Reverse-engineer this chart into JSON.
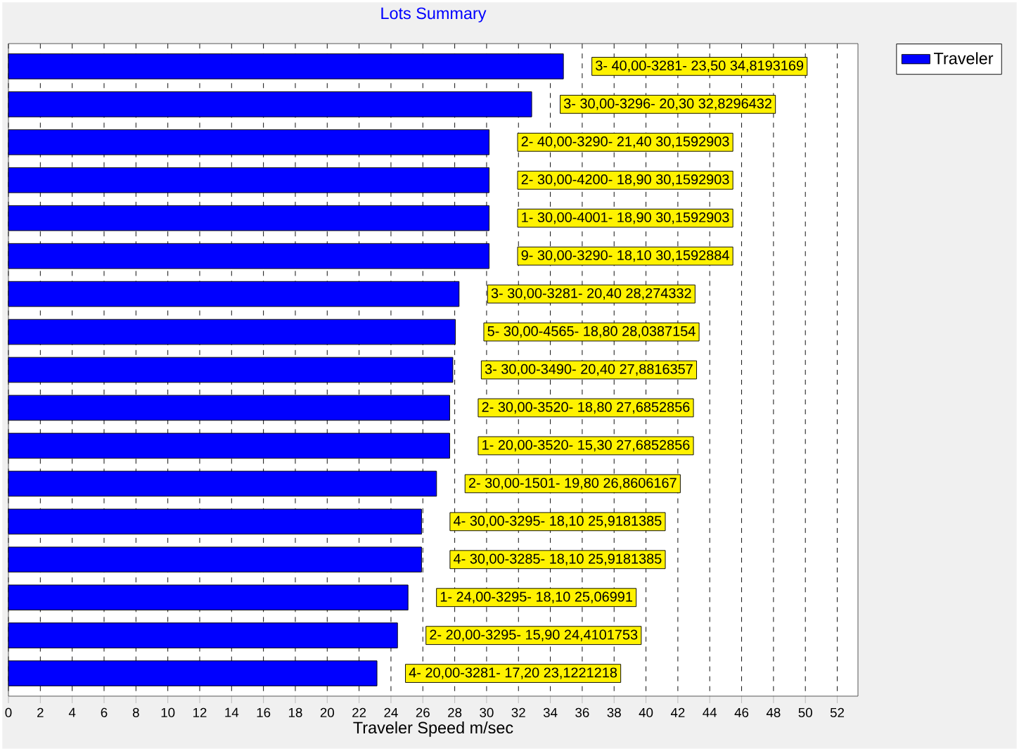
{
  "chart_data": {
    "type": "bar",
    "orientation": "horizontal",
    "title": "Lots Summary",
    "xlabel": "Traveler Speed m/sec",
    "categories": [
      null,
      null,
      null,
      null,
      null,
      null,
      null,
      null,
      null,
      null,
      null,
      null,
      null,
      null,
      null,
      null,
      null
    ],
    "series": [
      {
        "name": "Traveler",
        "color": "#0000ff",
        "values": [
          34.8193169,
          32.8296432,
          30.1592903,
          30.1592903,
          30.1592903,
          30.1592884,
          28.274332,
          28.0387154,
          27.8816357,
          27.6852856,
          27.6852856,
          26.8606167,
          25.9181385,
          25.9181385,
          25.06991,
          24.4101753,
          23.1221218
        ],
        "value_labels": [
          "3- 40,00-3281- 23,50 34,8193169",
          "3- 30,00-3296- 20,30 32,8296432",
          "2- 40,00-3290- 21,40 30,1592903",
          "2- 30,00-4200- 18,90 30,1592903",
          "1- 30,00-4001- 18,90 30,1592903",
          "9- 30,00-3290- 18,10 30,1592884",
          "3- 30,00-3281- 20,40 28,274332",
          "5- 30,00-4565- 18,80 28,0387154",
          "3- 30,00-3490- 20,40 27,8816357",
          "2- 30,00-3520- 18,80 27,6852856",
          "1- 20,00-3520- 15,30 27,6852856",
          "2- 30,00-1501- 19,80 26,8606167",
          "4- 30,00-3295- 18,10 25,9181385",
          "4- 30,00-3285- 18,10 25,9181385",
          "1- 24,00-3295- 18,10 25,06991",
          "2- 20,00-3295- 15,90 24,4101753",
          "4- 20,00-3281- 17,20 23,1221218"
        ]
      }
    ],
    "xlim": [
      0,
      53.3
    ],
    "xticks": [
      0,
      2,
      4,
      6,
      8,
      10,
      12,
      14,
      16,
      18,
      20,
      22,
      24,
      26,
      28,
      30,
      32,
      34,
      36,
      38,
      40,
      42,
      44,
      46,
      48,
      50,
      52
    ],
    "grid": true,
    "legend": "top right"
  }
}
